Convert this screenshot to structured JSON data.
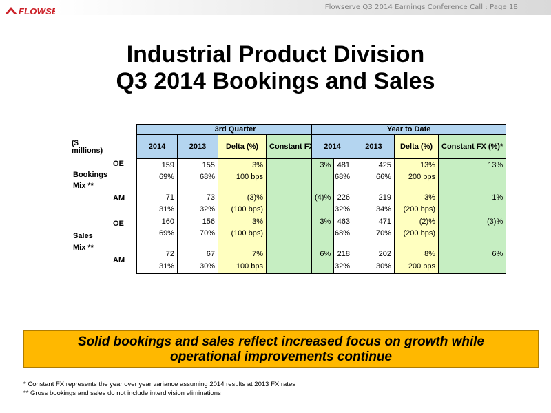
{
  "header": {
    "logo_text": "FLOWSERVE",
    "doc_title": "Flowserve  Q3 2014 Earnings Conference Call : Page 18"
  },
  "title": {
    "line1": "Industrial Product Division",
    "line2": "Q3 2014 Bookings and Sales"
  },
  "row_labels": {
    "units": "($ millions)",
    "units_line1": "($",
    "units_line2": "millions)",
    "oe": "OE",
    "am": "AM",
    "bookings": "Bookings",
    "sales": "Sales",
    "mix": "Mix **"
  },
  "quarter_table": {
    "band": "3rd Quarter",
    "columns": [
      "2014",
      "2013",
      "Delta (%)",
      "Constant FX (%)*"
    ],
    "rows": [
      [
        "159",
        "155",
        "3%",
        "3%"
      ],
      [
        "69%",
        "68%",
        "100 bps",
        ""
      ],
      [
        "",
        "",
        "",
        ""
      ],
      [
        "71",
        "73",
        "(3)%",
        "(4)%"
      ],
      [
        "31%",
        "32%",
        "(100 bps)",
        ""
      ],
      [
        "160",
        "156",
        "3%",
        "3%"
      ],
      [
        "69%",
        "70%",
        "(100 bps)",
        ""
      ],
      [
        "",
        "",
        "",
        ""
      ],
      [
        "72",
        "67",
        "7%",
        "6%"
      ],
      [
        "31%",
        "30%",
        "100 bps",
        ""
      ]
    ]
  },
  "ytd_table": {
    "band": "Year to Date",
    "columns": [
      "2014",
      "2013",
      "Delta (%)",
      "Constant FX (%)*"
    ],
    "rows": [
      [
        "481",
        "425",
        "13%",
        "13%"
      ],
      [
        "68%",
        "66%",
        "200 bps",
        ""
      ],
      [
        "",
        "",
        "",
        ""
      ],
      [
        "226",
        "219",
        "3%",
        "1%"
      ],
      [
        "32%",
        "34%",
        "(200 bps)",
        ""
      ],
      [
        "463",
        "471",
        "(2)%",
        "(3)%"
      ],
      [
        "68%",
        "70%",
        "(200 bps)",
        ""
      ],
      [
        "",
        "",
        "",
        ""
      ],
      [
        "218",
        "202",
        "8%",
        "6%"
      ],
      [
        "32%",
        "30%",
        "200 bps",
        ""
      ]
    ]
  },
  "callout": {
    "line1": "Solid bookings and sales reflect increased focus on growth while",
    "line2": "operational improvements continue"
  },
  "footnotes": {
    "f1": "* Constant FX represents the year over year variance assuming 2014 results at 2013 FX rates",
    "f2": "**  Gross bookings and sales do not include interdivision eliminations"
  },
  "colors": {
    "brand_red": "#cc2229",
    "header_blue": "#b4d5f0",
    "delta_yellow": "#ffffc0",
    "fx_green": "#c6eec2",
    "callout_orange": "#ffb800"
  }
}
